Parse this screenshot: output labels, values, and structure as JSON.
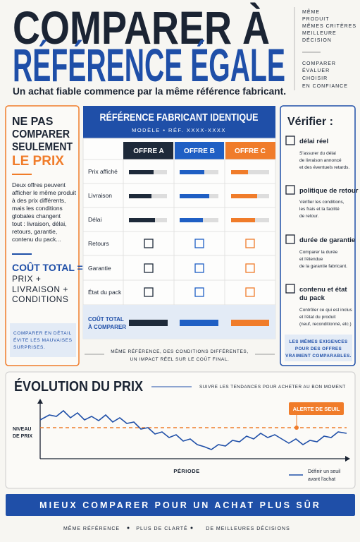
{
  "header": {
    "title_line1": "COMPARER À",
    "title_line2": "RÉFÉRENCE ÉGALE",
    "subtitle": "Un achat fiable commence par la même référence fabricant.",
    "side_top": [
      "MÊME",
      "PRODUIT",
      "MÊMES CRITÈRES",
      "MEILLEURE",
      "DÉCISION"
    ],
    "side_bottom": [
      "COMPARER",
      "ÉVALUER",
      "CHOISIR",
      "EN CONFIANCE"
    ]
  },
  "left_panel": {
    "heading": [
      "NE PAS",
      "COMPARER",
      "SEULEMENT"
    ],
    "heading_accent": "LE PRIX",
    "body": [
      "Deux offres peuvent",
      "afficher le même produit",
      "à des prix différents,",
      "mais les conditions",
      "globales changent",
      "tout : livraison, délai,",
      "retours, garantie,",
      "contenu du pack..."
    ],
    "total": [
      "COÛT TOTAL =",
      "PRIX +",
      "LIVRAISON +",
      "CONDITIONS"
    ],
    "note": [
      "COMPARER EN DÉTAIL",
      "ÉVITE LES MAUVAISES",
      "SURPRISES."
    ]
  },
  "comparison": {
    "title": "RÉFÉRENCE FABRICANT IDENTIQUE",
    "subtitle": "MODÈLE  •  RÉF. XXXX-XXXX",
    "offers": [
      "OFFRE A",
      "OFFRE B",
      "OFFRE C"
    ],
    "rows": [
      "Prix affiché",
      "Livraison",
      "Délai",
      "Retours",
      "Garantie",
      "État du pack"
    ],
    "total_row": [
      "COÛT TOTAL",
      "À COMPARER"
    ],
    "footnote": [
      "MÊME RÉFÉRENCE, DES CONDITIONS DIFFÉRENTES,",
      "UN IMPACT RÉEL SUR LE COÛT FINAL."
    ]
  },
  "verify": {
    "title": "Vérifier :",
    "items": [
      {
        "label": [
          "délai réel"
        ],
        "text": [
          "S'assurer du délai",
          "de livraison annoncé",
          "et des éventuels retards."
        ]
      },
      {
        "label": [
          "politique de retour"
        ],
        "text": [
          "Vérifier les conditions,",
          "les frais et la facilité",
          "de retour."
        ]
      },
      {
        "label": [
          "durée de garantie"
        ],
        "text": [
          "Comparer la durée",
          "et l'étendue",
          "de la garantie fabricant."
        ]
      },
      {
        "label": [
          "contenu et état",
          "du pack"
        ],
        "text": [
          "Contrôler ce qui est inclus",
          "et l'état du produit",
          "(neuf, reconditionné, etc.)"
        ]
      }
    ],
    "note": [
      "LES MÊMES EXIGENCES",
      "POUR DES OFFRES",
      "VRAIMENT COMPARABLES."
    ]
  },
  "price_chart": {
    "title": "ÉVOLUTION DU PRIX",
    "tagline": "SUIVRE LES TENDANCES POUR ACHETER AU BON MOMENT",
    "y_label": [
      "NIVEAU",
      "DE PRIX"
    ],
    "x_label": "PÉRIODE",
    "alert": "ALERTE DE SEUIL",
    "legend": [
      "Définir un seuil",
      "avant l'achat"
    ]
  },
  "banner": "MIEUX COMPARER POUR UN ACHAT PLUS SÛR",
  "footer": [
    "MÊME RÉFÉRENCE",
    "PLUS DE CLARTÉ",
    "DE MEILLEURES DÉCISIONS"
  ]
}
